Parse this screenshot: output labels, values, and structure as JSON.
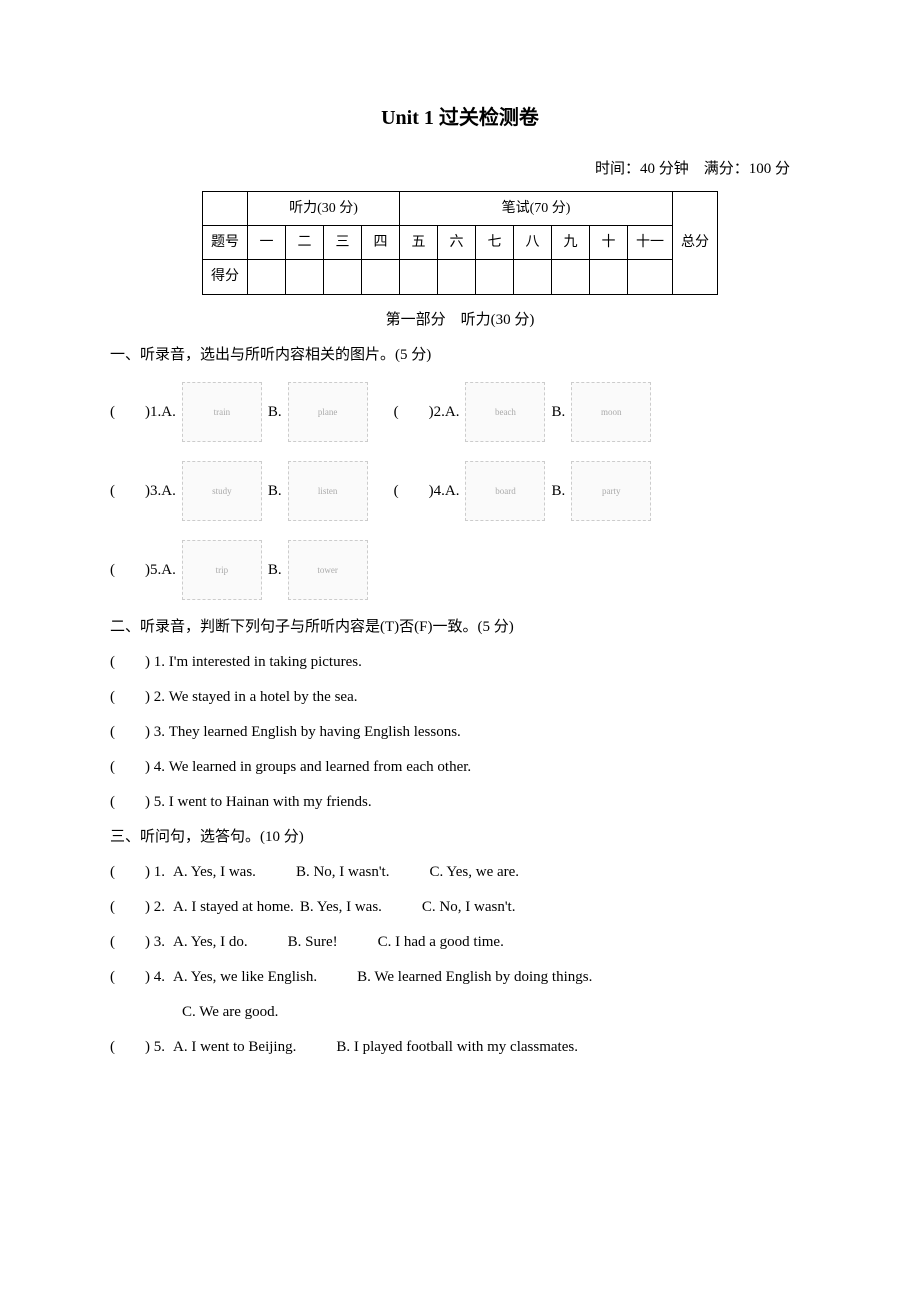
{
  "title": "Unit 1  过关检测卷",
  "meta": {
    "time_label": "时间：40 分钟",
    "full_score_label": "满分：100 分"
  },
  "table": {
    "listen_header": "听力(30 分)",
    "written_header": "笔试(70 分)",
    "total_header": "总分",
    "row_label_1": "题号",
    "row_label_2": "得分",
    "cols": [
      "一",
      "二",
      "三",
      "四",
      "五",
      "六",
      "七",
      "八",
      "九",
      "十",
      "十一"
    ]
  },
  "part1_header": "第一部分　听力(30 分)",
  "s1": {
    "header": "一、听录音，选出与所听内容相关的图片。(5 分)",
    "items": [
      {
        "n": "1",
        "a": "A.",
        "b": "B."
      },
      {
        "n": "2",
        "a": "A.",
        "b": "B."
      },
      {
        "n": "3",
        "a": "A.",
        "b": "B."
      },
      {
        "n": "4",
        "a": "A.",
        "b": "B."
      },
      {
        "n": "5",
        "a": "A.",
        "b": "B."
      }
    ]
  },
  "s2": {
    "header": "二、听录音，判断下列句子与所听内容是(T)否(F)一致。(5 分)",
    "items": [
      {
        "n": "1",
        "text": "I'm interested in taking pictures."
      },
      {
        "n": "2",
        "text": "We stayed in a hotel by the sea."
      },
      {
        "n": "3",
        "text": "They learned English by having English lessons."
      },
      {
        "n": "4",
        "text": "We learned in groups and learned from each other."
      },
      {
        "n": "5",
        "text": "I went to Hainan with my friends."
      }
    ]
  },
  "s3": {
    "header": "三、听问句，选答句。(10 分)",
    "items": [
      {
        "n": "1",
        "opts": [
          "A. Yes, I was.",
          "B. No, I wasn't.",
          "C. Yes, we are."
        ]
      },
      {
        "n": "2",
        "opts": [
          "A. I stayed at home.",
          "B. Yes, I was.",
          "C. No, I wasn't."
        ]
      },
      {
        "n": "3",
        "opts": [
          "A. Yes, I do.",
          "B. Sure!",
          "C. I had a good time."
        ]
      },
      {
        "n": "4",
        "opts": [
          "A. Yes, we like English.",
          "B. We learned English by doing things."
        ],
        "extra": [
          "C. We are good."
        ]
      },
      {
        "n": "5",
        "opts": [
          "A. I went to Beijing.",
          "B. I played football with my classmates."
        ]
      }
    ]
  }
}
